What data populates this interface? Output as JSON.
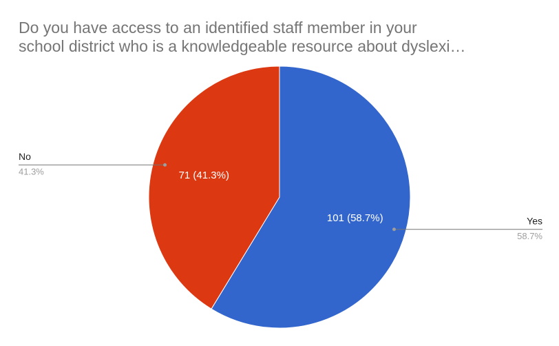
{
  "chart_data": {
    "type": "pie",
    "title": [
      "Do you have access to an identified staff member in your",
      "school district who is a knowledgeable resource about dyslexi…"
    ],
    "categories": [
      "Yes",
      "No"
    ],
    "values": [
      101,
      71
    ],
    "value_labels": [
      "101 (58.7%)",
      "71 (41.3%)"
    ],
    "percent_labels": [
      "58.7%",
      "41.3%"
    ],
    "colors": [
      "#3366cc",
      "#dc3912"
    ]
  }
}
